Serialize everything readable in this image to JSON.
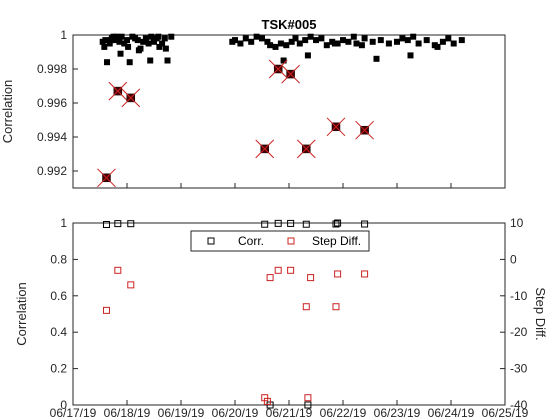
{
  "chart_data": [
    {
      "type": "scatter",
      "title": "TSK#005",
      "ylabel": "Correlation",
      "ylim": [
        0.991,
        1.0
      ],
      "xlim": [
        "06/17/19",
        "06/25/19"
      ],
      "yticks": [
        "0.992",
        "0.994",
        "0.996",
        "0.998",
        "1"
      ],
      "ytick_values": [
        0.992,
        0.994,
        0.996,
        0.998,
        1.0
      ],
      "colors": {
        "normal": "#000000",
        "flagged_fill": "#4a0000",
        "flagged_cross": "#cc2222"
      },
      "series": [
        {
          "values_x_days": [
            0.55,
            0.58,
            0.63,
            0.6,
            0.68,
            0.72,
            0.75,
            0.78,
            0.8,
            0.83,
            0.86,
            0.9,
            0.95,
            1.0,
            1.05,
            1.1,
            1.15,
            1.2,
            1.25,
            1.3,
            1.35,
            1.4,
            1.45,
            1.5,
            1.55,
            1.6,
            1.65,
            1.7,
            1.75,
            1.82,
            0.7,
            0.88,
            1.02,
            1.22,
            1.43,
            1.58,
            1.72,
            2.95,
            3.0,
            3.1,
            3.2,
            3.3,
            3.4,
            3.5,
            3.6,
            3.65,
            3.75,
            3.85,
            3.95,
            4.05,
            4.12,
            4.2,
            4.3,
            4.4,
            4.5,
            4.6,
            4.7,
            4.8,
            4.9,
            5.0,
            5.1,
            5.2,
            5.25,
            5.4,
            5.55,
            5.7,
            5.85,
            6.0,
            6.1,
            6.2,
            6.3,
            6.4,
            6.55,
            6.7,
            6.85,
            6.95,
            7.05,
            7.2,
            3.9,
            4.35,
            4.85,
            5.35,
            5.62,
            6.25,
            6.75
          ],
          "values_y": [
            0.9996,
            0.9993,
            0.9984,
            0.9997,
            0.9995,
            0.9998,
            0.9999,
            0.9997,
            0.9999,
            0.9998,
            0.9996,
            0.9999,
            0.9995,
            0.9997,
            0.9984,
            0.9999,
            0.9998,
            0.9997,
            0.9992,
            0.9996,
            0.9998,
            0.9995,
            0.9999,
            0.9996,
            0.9998,
            0.9993,
            0.9995,
            0.9998,
            0.9985,
            0.9999,
            0.9997,
            0.9989,
            0.9993,
            0.9991,
            0.9985,
            0.9999,
            0.9992,
            0.9996,
            0.9997,
            0.9995,
            0.9998,
            0.9996,
            0.9999,
            0.9998,
            0.9996,
            0.9994,
            0.9993,
            0.9995,
            0.9994,
            0.9996,
            0.9998,
            0.9995,
            0.9997,
            0.9999,
            0.9997,
            0.9998,
            0.9994,
            0.9996,
            0.9995,
            0.9997,
            0.9996,
            0.9999,
            0.9995,
            0.9998,
            0.9996,
            0.9997,
            0.9995,
            0.9996,
            0.9998,
            0.9997,
            0.9999,
            0.9995,
            0.9997,
            0.9994,
            0.9996,
            0.9998,
            0.9995,
            0.9997,
            0.9985,
            0.9988,
            0.9995,
            0.9994,
            0.9986,
            0.9988,
            0.9993
          ]
        },
        {
          "values_x_days": [
            0.62,
            0.83,
            1.07,
            3.55,
            3.8,
            4.03,
            4.32,
            4.87,
            5.4
          ],
          "values_y": [
            0.9916,
            0.9967,
            0.9963,
            0.9933,
            0.998,
            0.9977,
            0.9933,
            0.9946,
            0.9944
          ]
        }
      ]
    },
    {
      "type": "scatter",
      "ylabel": "Correlation",
      "ylabel_right": "Step Diff.",
      "ylim": [
        0,
        1
      ],
      "ylim_right": [
        -40,
        10
      ],
      "xlim": [
        "06/17/19",
        "06/25/19"
      ],
      "xticks": [
        "06/17/19",
        "06/18/19",
        "06/19/19",
        "06/20/19",
        "06/21/19",
        "06/22/19",
        "06/23/19",
        "06/24/19",
        "06/25/19"
      ],
      "yticks": [
        "0",
        "0.2",
        "0.4",
        "0.6",
        "0.8",
        "1"
      ],
      "ytick_values": [
        0,
        0.2,
        0.4,
        0.6,
        0.8,
        1.0
      ],
      "yticks_right": [
        "-40",
        "-30",
        "-20",
        "-10",
        "0",
        "10"
      ],
      "ytick_values_right": [
        -40,
        -30,
        -20,
        -10,
        0,
        10
      ],
      "legend": {
        "placement": "top-center",
        "entries": [
          "Corr.",
          "Step Diff."
        ]
      },
      "colors": {
        "corr": "#000000",
        "step": "#cc2222"
      },
      "series": [
        {
          "name": "Corr.",
          "x_days": [
            0.62,
            0.83,
            1.07,
            3.55,
            3.8,
            3.65,
            4.03,
            4.32,
            4.35,
            4.87,
            4.9,
            5.4
          ],
          "values": [
            0.9916,
            0.9967,
            0.9963,
            0.9933,
            0.998,
            0,
            0.9977,
            0.9933,
            0,
            0.9946,
            1.0,
            0.9944
          ]
        },
        {
          "name": "Step Diff.",
          "x_days": [
            0.62,
            0.83,
            1.07,
            3.55,
            3.6,
            3.65,
            3.8,
            4.03,
            4.32,
            4.35,
            4.4,
            4.87,
            4.9,
            5.4
          ],
          "values": [
            -14,
            -3,
            -7,
            -38,
            -39,
            -5,
            -3,
            -3,
            -13,
            -38,
            -5,
            -13,
            -4,
            -4
          ]
        }
      ]
    }
  ]
}
